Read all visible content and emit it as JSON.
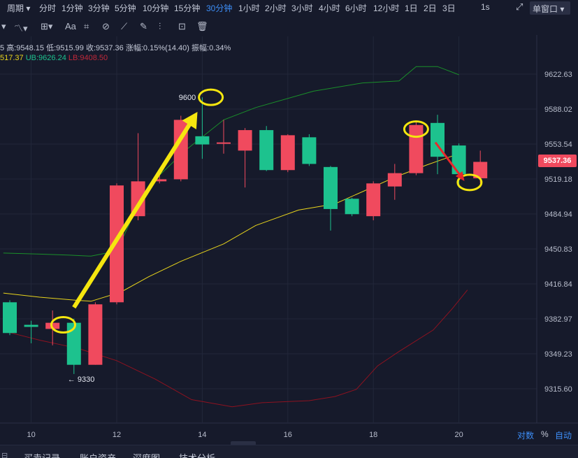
{
  "topbar": {
    "dropdown_label": "周期",
    "periods": [
      "分时",
      "1分钟",
      "3分钟",
      "5分钟",
      "10分钟",
      "15分钟",
      "30分钟",
      "1小时",
      "2小时",
      "3小时",
      "4小时",
      "6小时",
      "12小时",
      "1日",
      "2日",
      "3日"
    ],
    "active_period": "30分钟",
    "interval_label": "1s",
    "window_button_label": "单窗口"
  },
  "toolbar": {
    "text_tool_label": "Aa"
  },
  "info": {
    "ohlc_prefix": "5",
    "high": "高:9548.15",
    "low": "低:9515.99",
    "close": "收:9537.36",
    "change": "涨幅:0.15%(14.40)",
    "amplitude": "振幅:0.34%",
    "boll_mid": "517.37",
    "boll_ub": "UB:9626.24",
    "boll_lb": "LB:9408.50"
  },
  "colors": {
    "background": "#161a2b",
    "up": "#f04a5e",
    "down": "#1dc28e",
    "ub_line": "#1a8f2a",
    "mid_line": "#e8d41c",
    "lb_line": "#8e1220",
    "highlight": "#f5e60f",
    "arrow_red": "#e8282c",
    "accent": "#3d8ef7"
  },
  "chart_data": {
    "type": "candlestick",
    "x_tick_labels": [
      "10",
      "12",
      "14",
      "16",
      "18",
      "20"
    ],
    "x_tick_index": [
      1,
      5,
      9,
      13,
      17,
      21
    ],
    "y_tick_labels": [
      "9622.63",
      "9588.02",
      "9553.54",
      "9519.18",
      "9484.94",
      "9450.83",
      "9416.84",
      "9382.97",
      "9349.23",
      "9315.60"
    ],
    "ylim": [
      9290,
      9670
    ],
    "current_price": "9537.36",
    "candles": [
      {
        "o": 9400,
        "c": 9370,
        "h": 9402,
        "l": 9368
      },
      {
        "o": 9378,
        "c": 9376,
        "h": 9382,
        "l": 9360
      },
      {
        "o": 9374,
        "c": 9380,
        "h": 9392,
        "l": 9358
      },
      {
        "o": 9380,
        "c": 9339,
        "h": 9384,
        "l": 9330
      },
      {
        "o": 9339,
        "c": 9398,
        "h": 9400,
        "l": 9339
      },
      {
        "o": 9400,
        "c": 9514,
        "h": 9516,
        "l": 9398
      },
      {
        "o": 9484,
        "c": 9518,
        "h": 9565,
        "l": 9480
      },
      {
        "o": 9518,
        "c": 9520,
        "h": 9524,
        "l": 9516
      },
      {
        "o": 9520,
        "c": 9578,
        "h": 9582,
        "l": 9518
      },
      {
        "o": 9562,
        "c": 9554,
        "h": 9600,
        "l": 9540
      },
      {
        "o": 9556,
        "c": 9556,
        "h": 9578,
        "l": 9545
      },
      {
        "o": 9548,
        "c": 9568,
        "h": 9570,
        "l": 9512
      },
      {
        "o": 9568,
        "c": 9529,
        "h": 9572,
        "l": 9528
      },
      {
        "o": 9529,
        "c": 9563,
        "h": 9564,
        "l": 9527
      },
      {
        "o": 9561,
        "c": 9535,
        "h": 9564,
        "l": 9533
      },
      {
        "o": 9532,
        "c": 9491,
        "h": 9533,
        "l": 9470
      },
      {
        "o": 9501,
        "c": 9486,
        "h": 9502,
        "l": 9484
      },
      {
        "o": 9484,
        "c": 9516,
        "h": 9518,
        "l": 9480
      },
      {
        "o": 9513,
        "c": 9526,
        "h": 9535,
        "l": 9500
      },
      {
        "o": 9526,
        "c": 9573,
        "h": 9576,
        "l": 9524
      },
      {
        "o": 9575,
        "c": 9542,
        "h": 9583,
        "l": 9525
      },
      {
        "o": 9553,
        "c": 9525,
        "h": 9555,
        "l": 9512
      },
      {
        "o": 9521,
        "c": 9537,
        "h": 9548,
        "l": 9516
      }
    ],
    "bollinger": {
      "ub": [
        [
          -0.3,
          9448
        ],
        [
          1.4,
          9447
        ],
        [
          2.8,
          9446
        ],
        [
          3.8,
          9445
        ],
        [
          5,
          9450
        ],
        [
          6,
          9495
        ],
        [
          6.6,
          9516
        ],
        [
          8.2,
          9548
        ],
        [
          10,
          9578
        ],
        [
          11.5,
          9590
        ],
        [
          14.2,
          9606
        ],
        [
          16.5,
          9614
        ],
        [
          18.2,
          9616
        ],
        [
          19,
          9630
        ],
        [
          20,
          9630
        ],
        [
          21,
          9622
        ]
      ],
      "mid": [
        [
          -0.3,
          9409
        ],
        [
          1.4,
          9405
        ],
        [
          3.1,
          9402
        ],
        [
          3.8,
          9401
        ],
        [
          5.2,
          9410
        ],
        [
          6.5,
          9425
        ],
        [
          8,
          9440
        ],
        [
          10,
          9457
        ],
        [
          11.5,
          9475
        ],
        [
          13.5,
          9490
        ],
        [
          15.2,
          9496
        ],
        [
          16.5,
          9508
        ],
        [
          18,
          9522
        ],
        [
          19.5,
          9534
        ],
        [
          21,
          9545
        ]
      ],
      "lb": [
        [
          -0.3,
          9372
        ],
        [
          1.4,
          9363
        ],
        [
          3.2,
          9355
        ],
        [
          5,
          9343
        ],
        [
          6.8,
          9325
        ],
        [
          8.5,
          9305
        ],
        [
          10.4,
          9298
        ],
        [
          11.8,
          9302
        ],
        [
          14,
          9304
        ],
        [
          15.2,
          9308
        ],
        [
          16.2,
          9315
        ],
        [
          17.2,
          9338
        ],
        [
          18.2,
          9352
        ],
        [
          19.8,
          9373
        ],
        [
          20.7,
          9394
        ],
        [
          21.4,
          9412
        ]
      ]
    },
    "annotations": {
      "high_label": "9600",
      "low_label": "← 9330",
      "circles": [
        {
          "x": 2.5,
          "y": 9378
        },
        {
          "x": 9.4,
          "y": 9600
        },
        {
          "x": 19.0,
          "y": 9569
        },
        {
          "x": 21.5,
          "y": 9517
        }
      ],
      "yellow_arrow": {
        "from": [
          3,
          9395
        ],
        "to": [
          8.6,
          9580
        ]
      },
      "red_arrow": {
        "from": [
          19.9,
          9556
        ],
        "to": [
          21.2,
          9520
        ]
      }
    }
  },
  "bottom": {
    "log_label": "对数",
    "percent_label": "%",
    "auto_label": "自动"
  },
  "tabs": [
    "买卖记录",
    "账户资产",
    "深度图",
    "技术分析"
  ]
}
